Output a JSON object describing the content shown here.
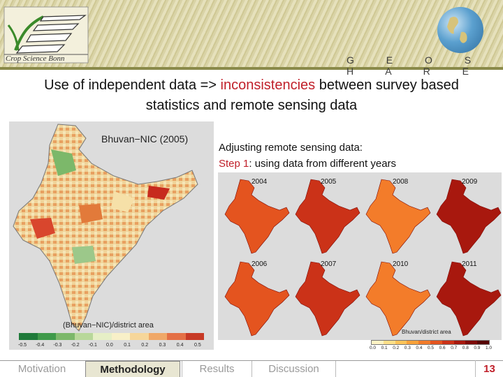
{
  "header": {
    "logo_text": "Crop Science Bonn",
    "brand": "G E O S H A R E"
  },
  "headline": {
    "line1_prefix": "Use of independent data => ",
    "line1_highlight": "inconsistencies",
    "line1_suffix": " between survey based",
    "line2": "statistics and remote sensing data"
  },
  "left_map": {
    "title": "Bhuvan−NIC (2005)",
    "axis_label": "(Bhuvan−NIC)/district area",
    "ticks": [
      "-0.5",
      "-0.4",
      "-0.3",
      "-0.2",
      "-0.1",
      "0.0",
      "0.1",
      "0.2",
      "0.3",
      "0.4",
      "0.5"
    ]
  },
  "adjusting": {
    "line1": "Adjusting remote sensing data:",
    "step_label": "Step 1",
    "step_text": ": using data from different years"
  },
  "right_panel": {
    "years": [
      "2004",
      "2005",
      "2008",
      "2009",
      "2006",
      "2007",
      "2010",
      "2011"
    ],
    "legend_title": "Bhuvan/district area",
    "ticks": [
      "0.0",
      "0.1",
      "0.2",
      "0.3",
      "0.4",
      "0.5",
      "0.6",
      "0.7",
      "0.8",
      "0.9",
      "1.0"
    ]
  },
  "footer": {
    "tabs": [
      {
        "label": "Motivation",
        "active": false
      },
      {
        "label": "Methodology",
        "active": true
      },
      {
        "label": "Results",
        "active": false
      },
      {
        "label": "Discussion",
        "active": false
      },
      {
        "label": "",
        "active": false
      }
    ],
    "page_number": "13"
  }
}
